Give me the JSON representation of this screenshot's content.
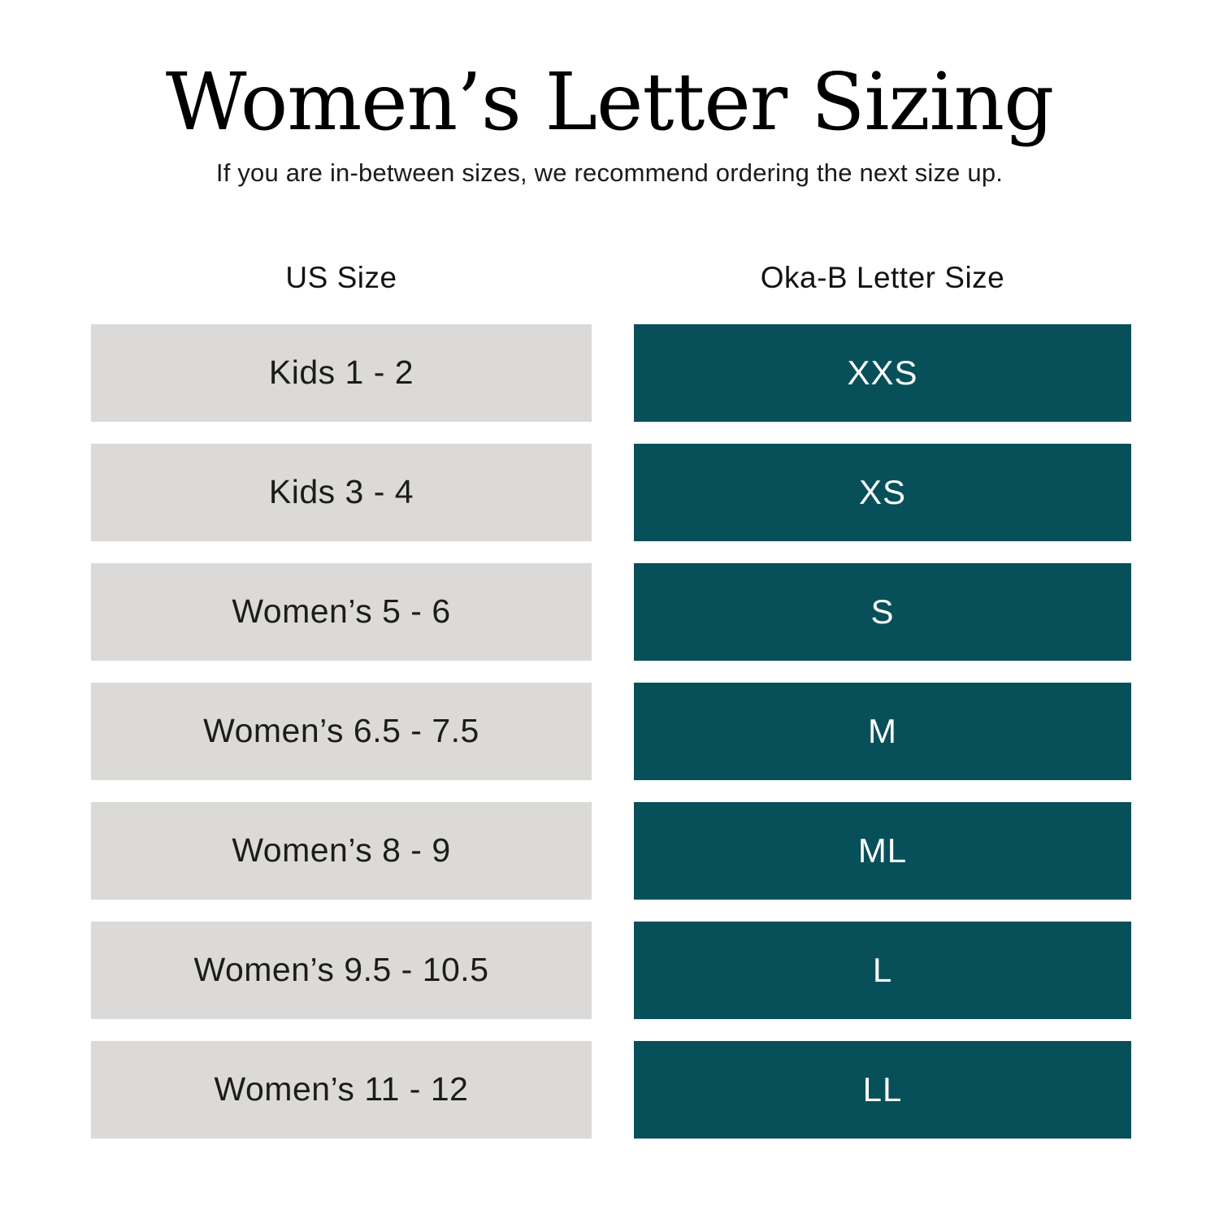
{
  "page": {
    "title": "Women’s Letter Sizing",
    "subtitle": "If you are in-between sizes, we recommend ordering the next size up."
  },
  "table": {
    "columns": {
      "us": "US Size",
      "letter": "Oka-B Letter Size"
    },
    "rows": [
      {
        "us": "Kids 1 - 2",
        "letter": "XXS"
      },
      {
        "us": "Kids 3 - 4",
        "letter": "XS"
      },
      {
        "us": "Women’s 5 - 6",
        "letter": "S"
      },
      {
        "us": "Women’s 6.5 - 7.5",
        "letter": "M"
      },
      {
        "us": "Women’s 8 - 9",
        "letter": "ML"
      },
      {
        "us": "Women’s 9.5 - 10.5",
        "letter": "L"
      },
      {
        "us": "Women’s 11 - 12",
        "letter": "LL"
      }
    ]
  },
  "colors": {
    "background": "#ffffff",
    "us_cell_bg": "#dbdad9",
    "letter_cell_bg": "#07505a",
    "text_dark": "#1c1c1a",
    "text_light": "#ffffff"
  }
}
